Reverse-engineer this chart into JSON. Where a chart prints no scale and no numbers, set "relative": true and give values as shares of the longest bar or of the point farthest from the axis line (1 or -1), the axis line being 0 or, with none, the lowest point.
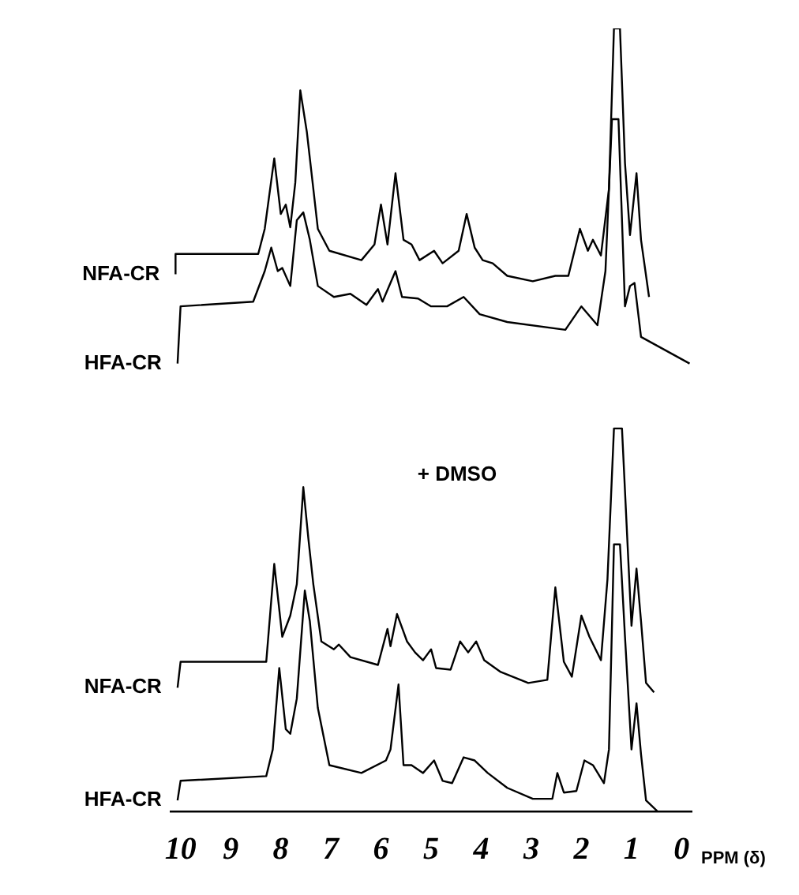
{
  "chart_data": {
    "type": "line",
    "relative": true,
    "xlabel": "PPM (δ)",
    "xlim": [
      10.2,
      -0.2
    ],
    "xticks": [
      10,
      9,
      8,
      7,
      6,
      5,
      4,
      3,
      2,
      1,
      0
    ],
    "grid": false,
    "legend": false,
    "marker": "none",
    "line_style": "solid",
    "tick_labels": "x",
    "annotations": [
      "+ DMSO"
    ],
    "series": [
      {
        "name": "NFA-CR",
        "color": "#000000",
        "x": [
          10.1,
          10.1,
          8.45,
          8.32,
          8.13,
          8,
          7.9,
          7.81,
          7.71,
          7.61,
          7.48,
          7.35,
          7.26,
          7.03,
          6.39,
          6.13,
          6,
          5.87,
          5.71,
          5.55,
          5.39,
          5.23,
          4.94,
          4.77,
          4.45,
          4.29,
          4.13,
          3.97,
          3.77,
          3.48,
          2.97,
          2.52,
          2.26,
          2.03,
          1.87,
          1.77,
          1.61,
          1.45,
          1.35,
          1.23,
          1.13,
          1.03,
          0.9,
          0.81,
          0.65
        ],
        "values": [
          0.686,
          0.712,
          0.712,
          0.744,
          0.834,
          0.763,
          0.775,
          0.746,
          0.803,
          0.921,
          0.868,
          0.795,
          0.744,
          0.716,
          0.704,
          0.724,
          0.775,
          0.724,
          0.815,
          0.73,
          0.724,
          0.704,
          0.716,
          0.7,
          0.716,
          0.763,
          0.72,
          0.704,
          0.7,
          0.684,
          0.677,
          0.684,
          0.684,
          0.744,
          0.716,
          0.73,
          0.71,
          0.795,
          1,
          1,
          0.828,
          0.736,
          0.815,
          0.73,
          0.657
        ]
      },
      {
        "name": "HFA-CR",
        "color": "#000000",
        "x": [
          10.06,
          10,
          8.55,
          8.32,
          8.19,
          8.06,
          7.97,
          7.81,
          7.68,
          7.55,
          7.42,
          7.26,
          6.94,
          6.61,
          6.29,
          6.06,
          5.97,
          5.71,
          5.58,
          5.26,
          5,
          4.68,
          4.35,
          4.03,
          3.48,
          2.32,
          2,
          1.68,
          1.52,
          1.39,
          1.26,
          1.13,
          1.03,
          0.94,
          0.81,
          -0.16
        ],
        "values": [
          0.572,
          0.645,
          0.651,
          0.69,
          0.72,
          0.69,
          0.694,
          0.671,
          0.755,
          0.765,
          0.73,
          0.671,
          0.657,
          0.661,
          0.647,
          0.667,
          0.651,
          0.69,
          0.657,
          0.655,
          0.645,
          0.645,
          0.657,
          0.635,
          0.625,
          0.615,
          0.645,
          0.621,
          0.69,
          0.884,
          0.884,
          0.645,
          0.671,
          0.675,
          0.606,
          0.572
        ]
      },
      {
        "name": "NFA-CR",
        "color": "#000000",
        "x": [
          10.06,
          10,
          8.29,
          8.13,
          7.97,
          7.81,
          7.68,
          7.55,
          7.45,
          7.35,
          7.19,
          6.94,
          6.84,
          6.61,
          6.06,
          5.87,
          5.81,
          5.68,
          5.48,
          5.32,
          5.16,
          5,
          4.9,
          4.61,
          4.42,
          4.26,
          4.1,
          3.94,
          3.61,
          3.06,
          2.68,
          2.52,
          2.35,
          2.19,
          2,
          1.84,
          1.61,
          1.48,
          1.35,
          1.19,
          1.06,
          1,
          0.9,
          0.81,
          0.71,
          0.55
        ],
        "values": [
          0.158,
          0.191,
          0.191,
          0.316,
          0.223,
          0.25,
          0.29,
          0.414,
          0.349,
          0.29,
          0.217,
          0.207,
          0.213,
          0.197,
          0.187,
          0.233,
          0.211,
          0.252,
          0.217,
          0.203,
          0.193,
          0.207,
          0.183,
          0.181,
          0.217,
          0.203,
          0.217,
          0.193,
          0.178,
          0.164,
          0.168,
          0.286,
          0.191,
          0.172,
          0.25,
          0.223,
          0.193,
          0.296,
          0.489,
          0.489,
          0.316,
          0.237,
          0.31,
          0.243,
          0.164,
          0.152
        ]
      },
      {
        "name": "HFA-CR",
        "color": "#000000",
        "x": [
          10.06,
          10,
          8.29,
          8.16,
          8.03,
          7.9,
          7.81,
          7.68,
          7.52,
          7.42,
          7.26,
          7.03,
          6.39,
          5.9,
          5.81,
          5.65,
          5.55,
          5.39,
          5.16,
          4.94,
          4.77,
          4.58,
          4.35,
          4.13,
          3.87,
          3.48,
          2.97,
          2.58,
          2.48,
          2.35,
          2.1,
          1.94,
          1.77,
          1.55,
          1.45,
          1.35,
          1.23,
          1.13,
          1,
          0.9,
          0.81,
          0.71,
          0.48
        ],
        "values": [
          0.014,
          0.039,
          0.045,
          0.079,
          0.183,
          0.105,
          0.099,
          0.144,
          0.282,
          0.243,
          0.132,
          0.059,
          0.049,
          0.065,
          0.079,
          0.162,
          0.059,
          0.059,
          0.049,
          0.065,
          0.039,
          0.036,
          0.069,
          0.065,
          0.049,
          0.03,
          0.016,
          0.016,
          0.049,
          0.024,
          0.026,
          0.065,
          0.059,
          0.036,
          0.079,
          0.341,
          0.341,
          0.223,
          0.079,
          0.138,
          0.073,
          0.014,
          0
        ]
      }
    ]
  }
}
